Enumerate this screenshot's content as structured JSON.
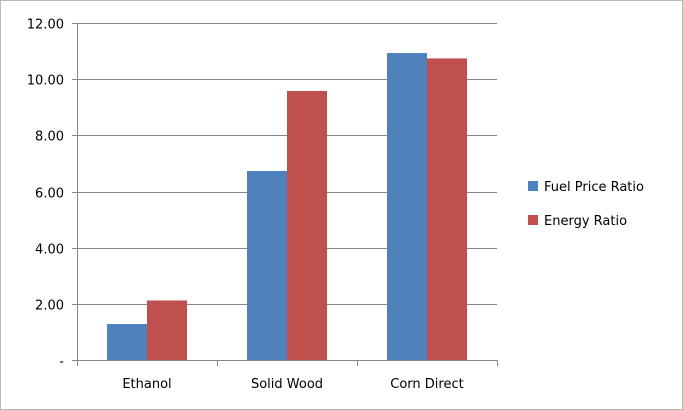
{
  "chart_data": {
    "type": "bar",
    "categories": [
      "Ethanol",
      "Solid Wood",
      "Corn Direct"
    ],
    "series": [
      {
        "name": "Fuel Price Ratio",
        "values": [
          1.28,
          6.73,
          10.93
        ],
        "color": "#4F81BD"
      },
      {
        "name": "Energy Ratio",
        "values": [
          2.12,
          9.58,
          10.74
        ],
        "color": "#C0504D"
      }
    ],
    "ylim": [
      0,
      12
    ],
    "yticks": [
      0,
      2,
      4,
      6,
      8,
      10,
      12
    ],
    "ytick_labels": [
      "-",
      "2.00",
      "4.00",
      "6.00",
      "8.00",
      "10.00",
      "12.00"
    ],
    "grid": true,
    "legend_position": "right",
    "title": "",
    "xlabel": "",
    "ylabel": ""
  }
}
